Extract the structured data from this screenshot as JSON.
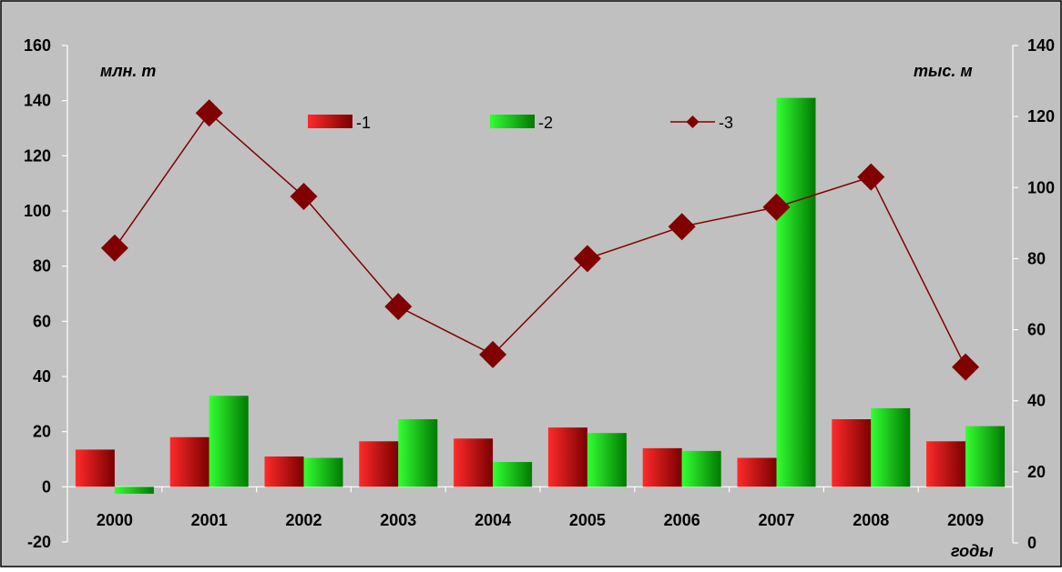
{
  "chart_data": {
    "type": "bar",
    "title": "",
    "categories": [
      "2000",
      "2001",
      "2002",
      "2003",
      "2004",
      "2005",
      "2006",
      "2007",
      "2008",
      "2009"
    ],
    "y_left": {
      "label": "млн. т",
      "ylim": [
        -20,
        160
      ],
      "ticks": [
        -20,
        0,
        20,
        40,
        60,
        80,
        100,
        120,
        140,
        160
      ]
    },
    "y_right": {
      "label": "тыс. м",
      "ylim": [
        0,
        140
      ],
      "ticks": [
        0,
        20,
        40,
        60,
        80,
        100,
        120,
        140
      ]
    },
    "x_label": "годы",
    "series": [
      {
        "name": "-1",
        "kind": "bar",
        "axis": "left",
        "values": [
          13.5,
          18,
          11,
          16.5,
          17.5,
          21.5,
          14,
          10.5,
          24.5,
          16.5
        ]
      },
      {
        "name": "-2",
        "kind": "bar",
        "axis": "left",
        "values": [
          -2.5,
          33,
          10.5,
          24.5,
          9,
          19.5,
          13,
          141,
          28.5,
          22
        ]
      },
      {
        "name": "-3",
        "kind": "line",
        "axis": "right",
        "values": [
          83,
          121,
          97.5,
          66.5,
          53,
          80,
          89,
          94.5,
          103,
          49.5
        ]
      }
    ],
    "grid": false,
    "legend_position": "top",
    "colors": {
      "background": "#c0c0c0",
      "frame": "#000000",
      "bar1_light": "#ff2a2a",
      "bar1_dark": "#7a0000",
      "bar2_light": "#33ff33",
      "bar2_dark": "#007a00",
      "line": "#800000"
    }
  }
}
